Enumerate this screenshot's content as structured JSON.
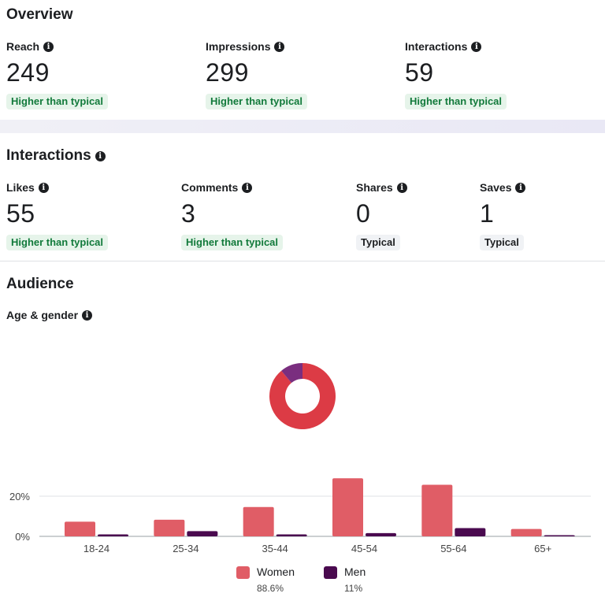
{
  "overview": {
    "title": "Overview",
    "metrics": [
      {
        "label": "Reach",
        "value": "249",
        "badge": "Higher than typical"
      },
      {
        "label": "Impressions",
        "value": "299",
        "badge": "Higher than typical"
      },
      {
        "label": "Interactions",
        "value": "59",
        "badge": "Higher than typical"
      }
    ]
  },
  "interactions": {
    "title": "Interactions",
    "metrics": [
      {
        "label": "Likes",
        "value": "55",
        "badge": "Higher than typical"
      },
      {
        "label": "Comments",
        "value": "3",
        "badge": "Higher than typical"
      },
      {
        "label": "Shares",
        "value": "0",
        "badge": "Typical"
      },
      {
        "label": "Saves",
        "value": "1",
        "badge": "Typical"
      }
    ]
  },
  "audience": {
    "title": "Audience",
    "age_gender_label": "Age & gender",
    "legend": [
      {
        "name": "Women",
        "percent": "88.6%",
        "color": "#e05d66"
      },
      {
        "name": "Men",
        "percent": "11%",
        "color": "#4a0a4f"
      }
    ]
  },
  "chart_data": [
    {
      "type": "pie",
      "labels": [
        "Women",
        "Men"
      ],
      "values": [
        88.6,
        11
      ],
      "colors": [
        "#dc3b45",
        "#7a2e7f"
      ]
    },
    {
      "type": "bar",
      "categories": [
        "18-24",
        "25-34",
        "35-44",
        "45-54",
        "55-64",
        "65+"
      ],
      "series": [
        {
          "name": "Women",
          "color": "#e05d66",
          "values": [
            7.3,
            8.3,
            14.6,
            28.9,
            25.7,
            3.7
          ]
        },
        {
          "name": "Men",
          "color": "#4a0a4f",
          "values": [
            1.0,
            2.6,
            1.0,
            1.6,
            4.1,
            0.4
          ]
        }
      ],
      "y_ticks": [
        "0%",
        "20%"
      ],
      "ylim": [
        0,
        30
      ],
      "grid": true
    }
  ]
}
